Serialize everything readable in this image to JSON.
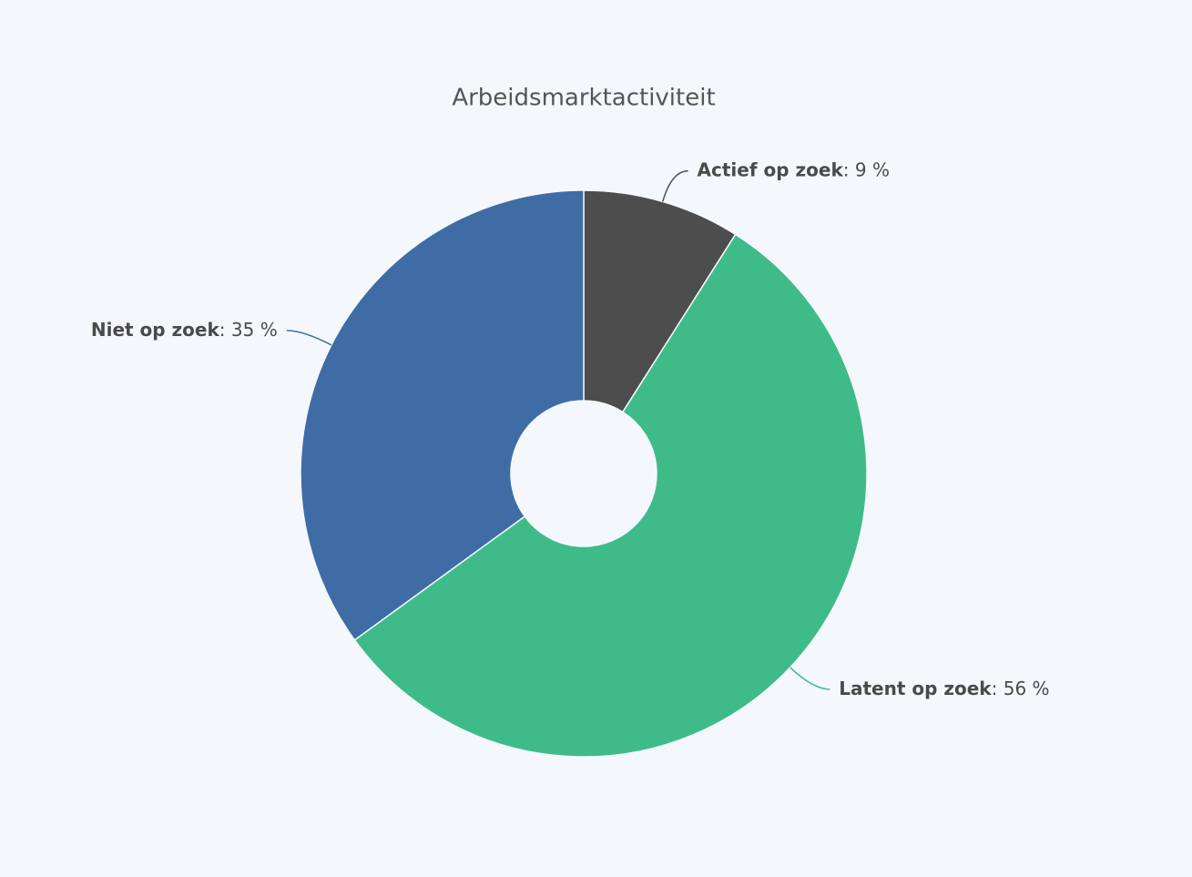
{
  "chart_data": {
    "type": "pie",
    "title": "Arbeidsmarktactiviteit",
    "categories": [
      "Actief op zoek",
      "Latent op zoek",
      "Niet op zoek"
    ],
    "values": [
      9,
      56,
      35
    ],
    "value_labels": [
      ": 9 %",
      ": 56 %",
      ": 35 %"
    ],
    "colors": [
      "#4d4d4d",
      "#3fbb8a",
      "#406ca6"
    ]
  }
}
